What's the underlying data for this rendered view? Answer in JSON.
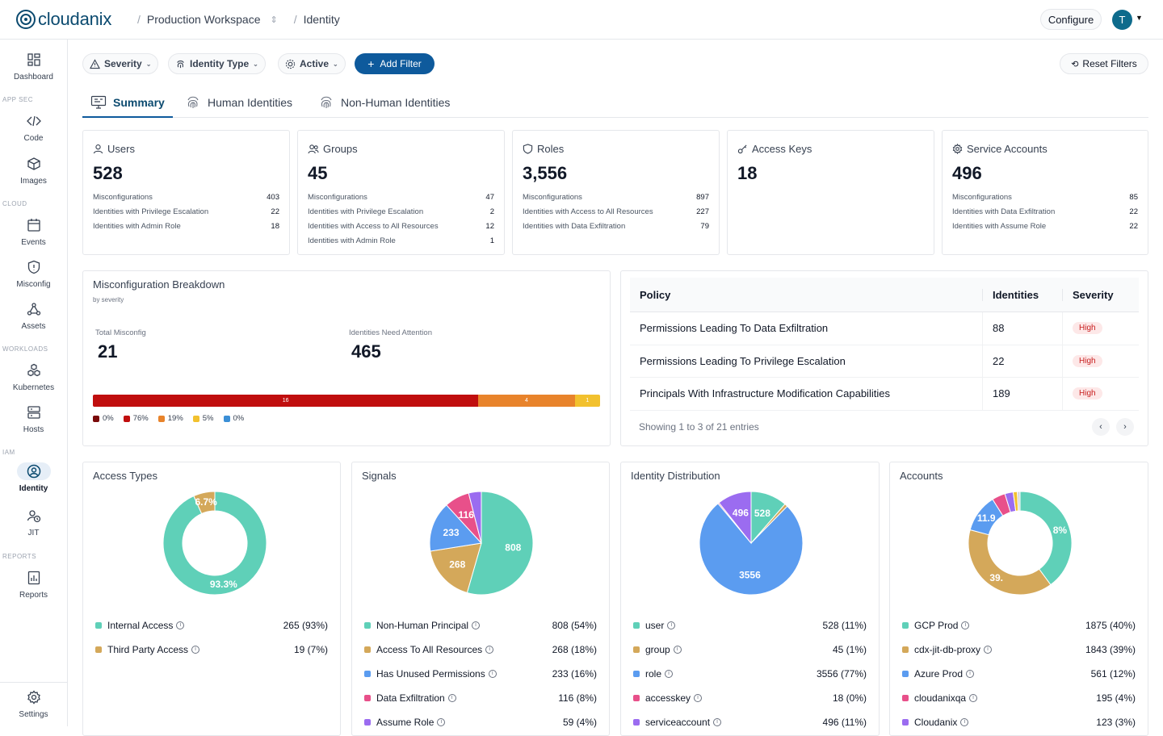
{
  "header": {
    "logo": "cloudanix",
    "workspace": "Production Workspace",
    "page": "Identity",
    "configure": "Configure",
    "avatar": "T"
  },
  "sidebar": {
    "items": [
      {
        "label": "Dashboard"
      },
      {
        "section": "APP SEC"
      },
      {
        "label": "Code"
      },
      {
        "label": "Images"
      },
      {
        "section": "CLOUD"
      },
      {
        "label": "Events"
      },
      {
        "label": "Misconfig"
      },
      {
        "label": "Assets"
      },
      {
        "section": "WORKLOADS"
      },
      {
        "label": "Kubernetes"
      },
      {
        "label": "Hosts"
      },
      {
        "section": "IAM"
      },
      {
        "label": "Identity"
      },
      {
        "label": "JIT"
      },
      {
        "section": "REPORTS"
      },
      {
        "label": "Reports"
      }
    ],
    "settings": "Settings"
  },
  "filters": {
    "severity": "Severity",
    "identity_type": "Identity Type",
    "active": "Active",
    "add_filter": "Add Filter",
    "reset": "Reset Filters"
  },
  "tabs": [
    "Summary",
    "Human Identities",
    "Non-Human Identities"
  ],
  "summary_cards": [
    {
      "title": "Users",
      "value": "528",
      "rows": [
        {
          "label": "Misconfigurations",
          "value": "403"
        },
        {
          "label": "Identities with Privilege Escalation",
          "value": "22"
        },
        {
          "label": "Identities with Admin Role",
          "value": "18"
        }
      ]
    },
    {
      "title": "Groups",
      "value": "45",
      "rows": [
        {
          "label": "Misconfigurations",
          "value": "47"
        },
        {
          "label": "Identities with Privilege Escalation",
          "value": "2"
        },
        {
          "label": "Identities with Access to All Resources",
          "value": "12"
        },
        {
          "label": "Identities with Admin Role",
          "value": "1"
        }
      ]
    },
    {
      "title": "Roles",
      "value": "3,556",
      "rows": [
        {
          "label": "Misconfigurations",
          "value": "897"
        },
        {
          "label": "Identities with Access to All Resources",
          "value": "227"
        },
        {
          "label": "Identities with Data Exfiltration",
          "value": "79"
        }
      ]
    },
    {
      "title": "Access Keys",
      "value": "18",
      "rows": []
    },
    {
      "title": "Service Accounts",
      "value": "496",
      "rows": [
        {
          "label": "Misconfigurations",
          "value": "85"
        },
        {
          "label": "Identities with Data Exfiltration",
          "value": "22"
        },
        {
          "label": "Identities with Assume Role",
          "value": "22"
        }
      ]
    }
  ],
  "breakdown": {
    "title": "Misconfiguration Breakdown",
    "subtitle": "by severity",
    "total_label": "Total Misconfig",
    "total": "21",
    "attention_label": "Identities Need Attention",
    "attention": "465",
    "segments": [
      {
        "label": "16",
        "fraction": 0.76,
        "color": "#c00e0e"
      },
      {
        "label": "4",
        "fraction": 0.19,
        "color": "#e8832b"
      },
      {
        "label": "1",
        "fraction": 0.05,
        "color": "#f2c12e"
      }
    ],
    "legend": [
      {
        "label": "0%",
        "color": "#7a0a0a"
      },
      {
        "label": "76%",
        "color": "#c00e0e"
      },
      {
        "label": "19%",
        "color": "#e8832b"
      },
      {
        "label": "5%",
        "color": "#f2c12e"
      },
      {
        "label": "0%",
        "color": "#3b8fd6"
      }
    ]
  },
  "policy_table": {
    "headers": [
      "Policy",
      "Identities",
      "Severity"
    ],
    "rows": [
      {
        "policy": "Permissions Leading To Data Exfiltration",
        "identities": "88",
        "severity": "High"
      },
      {
        "policy": "Permissions Leading To Privilege Escalation",
        "identities": "22",
        "severity": "High"
      },
      {
        "policy": "Principals With Infrastructure Modification Capabilities",
        "identities": "189",
        "severity": "High"
      }
    ],
    "footer": "Showing 1 to 3 of 21 entries"
  },
  "charts": [
    {
      "title": "Access Types",
      "chart_data": {
        "type": "pie",
        "donut": true,
        "slices": [
          {
            "name": "Internal Access",
            "value": 265,
            "display": "265 (93%)",
            "label": "93.3%",
            "color": "#5fd0b8"
          },
          {
            "name": "Third Party Access",
            "value": 19,
            "display": "19 (7%)",
            "label": "6.7%",
            "color": "#d4a85a"
          }
        ]
      }
    },
    {
      "title": "Signals",
      "chart_data": {
        "type": "pie",
        "donut": false,
        "slices": [
          {
            "name": "Non-Human Principal",
            "value": 808,
            "display": "808 (54%)",
            "label": "808",
            "color": "#5fd0b8"
          },
          {
            "name": "Access To All Resources",
            "value": 268,
            "display": "268 (18%)",
            "label": "268",
            "color": "#d4a85a"
          },
          {
            "name": "Has Unused Permissions",
            "value": 233,
            "display": "233 (16%)",
            "label": "233",
            "color": "#5b9cf0"
          },
          {
            "name": "Data Exfiltration",
            "value": 116,
            "display": "116 (8%)",
            "label": "116",
            "color": "#e8508a"
          },
          {
            "name": "Assume Role",
            "value": 59,
            "display": "59 (4%)",
            "label": "",
            "color": "#9b6cf0"
          }
        ]
      }
    },
    {
      "title": "Identity Distribution",
      "chart_data": {
        "type": "pie",
        "donut": false,
        "slices": [
          {
            "name": "user",
            "value": 528,
            "display": "528 (11%)",
            "label": "528",
            "color": "#5fd0b8"
          },
          {
            "name": "group",
            "value": 45,
            "display": "45 (1%)",
            "label": "",
            "color": "#d4a85a"
          },
          {
            "name": "role",
            "value": 3556,
            "display": "3556 (77%)",
            "label": "3556",
            "color": "#5b9cf0"
          },
          {
            "name": "accesskey",
            "value": 18,
            "display": "18 (0%)",
            "label": "",
            "color": "#e8508a"
          },
          {
            "name": "serviceaccount",
            "value": 496,
            "display": "496 (11%)",
            "label": "496",
            "color": "#9b6cf0"
          }
        ]
      }
    },
    {
      "title": "Accounts",
      "chart_data": {
        "type": "pie",
        "donut": true,
        "slices": [
          {
            "name": "GCP Prod",
            "value": 1875,
            "display": "1875 (40%)",
            "label": "8%",
            "color": "#5fd0b8"
          },
          {
            "name": "cdx-jit-db-proxy",
            "value": 1843,
            "display": "1843 (39%)",
            "label": "39.",
            "color": "#d4a85a"
          },
          {
            "name": "Azure Prod",
            "value": 561,
            "display": "561 (12%)",
            "label": "11.9",
            "color": "#5b9cf0"
          },
          {
            "name": "cloudanixqa",
            "value": 195,
            "display": "195 (4%)",
            "label": "",
            "color": "#e8508a"
          },
          {
            "name": "Cloudanix",
            "value": 123,
            "display": "123 (3%)",
            "label": "",
            "color": "#9b6cf0"
          },
          {
            "name": "",
            "value": 60,
            "display": "",
            "label": "",
            "color": "#f2c12e"
          },
          {
            "name": "",
            "value": 40,
            "display": "",
            "label": "",
            "color": "#d1d5db"
          }
        ]
      }
    }
  ]
}
